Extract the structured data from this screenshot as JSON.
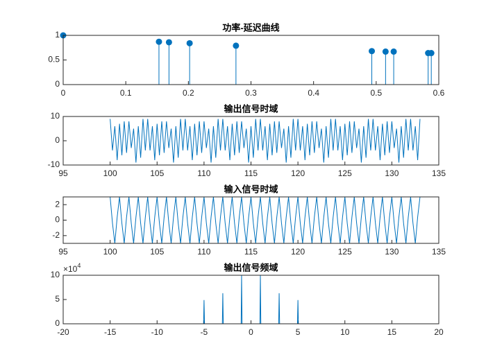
{
  "chart_data": [
    {
      "type": "stem",
      "title": "功率-延迟曲线",
      "color": "#0072bd",
      "x": [
        0,
        0.153,
        0.169,
        0.202,
        0.276,
        0.493,
        0.515,
        0.528,
        0.583,
        0.588
      ],
      "values": [
        1,
        0.87,
        0.86,
        0.84,
        0.79,
        0.68,
        0.67,
        0.67,
        0.64,
        0.64
      ],
      "xlim": [
        0,
        0.6
      ],
      "xticks": [
        0,
        0.1,
        0.2,
        0.3,
        0.4,
        0.5,
        0.6
      ],
      "ylim": [
        0,
        1
      ],
      "yticks": [
        0,
        0.5,
        1
      ]
    },
    {
      "type": "line",
      "title": "输出信号时域",
      "color": "#0072bd",
      "x": [
        100,
        100.25,
        100.5,
        100.75,
        101,
        101.25,
        101.5,
        101.75,
        102,
        102.25,
        102.5,
        102.75,
        103,
        103.25,
        103.5,
        103.75,
        104,
        104.25,
        104.5,
        104.75,
        105,
        105.25,
        105.5,
        105.75,
        106,
        106.25,
        106.5,
        106.75,
        107,
        107.25,
        107.5,
        107.75,
        108,
        108.25,
        108.5,
        108.75,
        109,
        109.25,
        109.5,
        109.75,
        110,
        110.25,
        110.5,
        110.75,
        111,
        111.25,
        111.5,
        111.75,
        112,
        112.25,
        112.5,
        112.75,
        113,
        113.25,
        113.5,
        113.75,
        114,
        114.25,
        114.5,
        114.75,
        115,
        115.25,
        115.5,
        115.75,
        116,
        116.25,
        116.5,
        116.75,
        117,
        117.25,
        117.5,
        117.75,
        118,
        118.25,
        118.5,
        118.75,
        119,
        119.25,
        119.5,
        119.75,
        120,
        120.25,
        120.5,
        120.75,
        121,
        121.25,
        121.5,
        121.75,
        122,
        122.25,
        122.5,
        122.75,
        123,
        123.25,
        123.5,
        123.75,
        124,
        124.25,
        124.5,
        124.75,
        125,
        125.25,
        125.5,
        125.75,
        126,
        126.25,
        126.5,
        126.75,
        127,
        127.25,
        127.5,
        127.75,
        128,
        128.25,
        128.5,
        128.75,
        129,
        129.25,
        129.5,
        129.75,
        130,
        130.25,
        130.5,
        130.75,
        131,
        131.25,
        131.5,
        131.75,
        132,
        132.25,
        132.5,
        132.75,
        133
      ],
      "values": [
        9,
        -4,
        6,
        -8,
        7,
        -6,
        8,
        -5,
        8,
        -3,
        5,
        -9,
        6,
        -7,
        9,
        -4,
        9,
        -4,
        6,
        -8,
        7,
        -6,
        8,
        -5,
        8,
        -3,
        5,
        -9,
        6,
        -7,
        9,
        -4,
        9,
        -4,
        6,
        -8,
        7,
        -6,
        8,
        -5,
        8,
        -3,
        5,
        -9,
        6,
        -7,
        9,
        -4,
        9,
        -4,
        6,
        -8,
        7,
        -6,
        8,
        -5,
        8,
        -3,
        5,
        -9,
        6,
        -7,
        9,
        -4,
        9,
        -4,
        6,
        -8,
        7,
        -6,
        8,
        -5,
        8,
        -3,
        5,
        -9,
        6,
        -7,
        9,
        -4,
        9,
        -4,
        6,
        -8,
        7,
        -6,
        8,
        -5,
        8,
        -3,
        5,
        -9,
        6,
        -7,
        9,
        -4,
        9,
        -4,
        6,
        -8,
        7,
        -6,
        8,
        -5,
        8,
        -3,
        5,
        -9,
        6,
        -7,
        9,
        -4,
        9,
        -4,
        6,
        -8,
        7,
        -6,
        8,
        -5,
        8,
        -3,
        5,
        -9,
        6,
        -7,
        9,
        -4,
        9,
        -4,
        6,
        -8,
        9
      ],
      "xlim": [
        95,
        135
      ],
      "xticks": [
        95,
        100,
        105,
        110,
        115,
        120,
        125,
        130,
        135
      ],
      "ylim": [
        -10,
        10
      ],
      "yticks": [
        -10,
        0,
        10
      ]
    },
    {
      "type": "line",
      "title": "输入信号时域",
      "color": "#0072bd",
      "x": [
        100,
        100.25,
        100.5,
        100.75,
        101,
        101.25,
        101.5,
        101.75,
        102,
        102.25,
        102.5,
        102.75,
        103,
        103.25,
        103.5,
        103.75,
        104,
        104.25,
        104.5,
        104.75,
        105,
        105.25,
        105.5,
        105.75,
        106,
        106.25,
        106.5,
        106.75,
        107,
        107.25,
        107.5,
        107.75,
        108,
        108.25,
        108.5,
        108.75,
        109,
        109.25,
        109.5,
        109.75,
        110,
        110.25,
        110.5,
        110.75,
        111,
        111.25,
        111.5,
        111.75,
        112,
        112.25,
        112.5,
        112.75,
        113,
        113.25,
        113.5,
        113.75,
        114,
        114.25,
        114.5,
        114.75,
        115,
        115.25,
        115.5,
        115.75,
        116,
        116.25,
        116.5,
        116.75,
        117,
        117.25,
        117.5,
        117.75,
        118,
        118.25,
        118.5,
        118.75,
        119,
        119.25,
        119.5,
        119.75,
        120,
        120.25,
        120.5,
        120.75,
        121,
        121.25,
        121.5,
        121.75,
        122,
        122.25,
        122.5,
        122.75,
        123,
        123.25,
        123.5,
        123.75,
        124,
        124.25,
        124.5,
        124.75,
        125,
        125.25,
        125.5,
        125.75,
        126,
        126.25,
        126.5,
        126.75,
        127,
        127.25,
        127.5,
        127.75,
        128,
        128.25,
        128.5,
        128.75,
        129,
        129.25,
        129.5,
        129.75,
        130,
        130.25,
        130.5,
        130.75,
        131,
        131.25,
        131.5,
        131.75,
        132,
        132.25,
        132.5,
        132.75,
        133
      ],
      "values": [
        3,
        -0.4,
        -3,
        0.4,
        3,
        -0.4,
        -3,
        0.4,
        3,
        -0.4,
        -3,
        0.4,
        3,
        -0.4,
        -3,
        0.4,
        3,
        -0.4,
        -3,
        0.4,
        3,
        -0.4,
        -3,
        0.4,
        3,
        -0.4,
        -3,
        0.4,
        3,
        -0.4,
        -3,
        0.4,
        3,
        -0.4,
        -3,
        0.4,
        3,
        -0.4,
        -3,
        0.4,
        3,
        -0.4,
        -3,
        0.4,
        3,
        -0.4,
        -3,
        0.4,
        3,
        -0.4,
        -3,
        0.4,
        3,
        -0.4,
        -3,
        0.4,
        3,
        -0.4,
        -3,
        0.4,
        3,
        -0.4,
        -3,
        0.4,
        3,
        -0.4,
        -3,
        0.4,
        3,
        -0.4,
        -3,
        0.4,
        3,
        -0.4,
        -3,
        0.4,
        3,
        -0.4,
        -3,
        0.4,
        3,
        -0.4,
        -3,
        0.4,
        3,
        -0.4,
        -3,
        0.4,
        3,
        -0.4,
        -3,
        0.4,
        3,
        -0.4,
        -3,
        0.4,
        3,
        -0.4,
        -3,
        0.4,
        3,
        -0.4,
        -3,
        0.4,
        3,
        -0.4,
        -3,
        0.4,
        3,
        -0.4,
        -3,
        0.4,
        3,
        -0.4,
        -3,
        0.4,
        3,
        -0.4,
        -3,
        0.4,
        3,
        -0.4,
        -3,
        0.4,
        3,
        -0.4,
        -3,
        0.4,
        3,
        -0.4,
        -3,
        0.4,
        3
      ],
      "xlim": [
        95,
        135
      ],
      "xticks": [
        95,
        100,
        105,
        110,
        115,
        120,
        125,
        130,
        135
      ],
      "ylim": [
        -3,
        3
      ],
      "yticks": [
        -2,
        0,
        2
      ]
    },
    {
      "type": "line",
      "title": "输出信号频域",
      "color": "#0072bd",
      "y_multiplier": "×10",
      "y_multiplier_exp": "4",
      "x": [
        -20,
        -5.05,
        -5,
        -4.95,
        -3.05,
        -3,
        -2.95,
        -1.05,
        -1,
        -0.95,
        0.95,
        1,
        1.05,
        2.95,
        3,
        3.05,
        4.95,
        5,
        5.05,
        20
      ],
      "values": [
        0,
        0,
        49000,
        0,
        0,
        63000,
        0,
        0,
        100000,
        0,
        0,
        100000,
        0,
        0,
        63000,
        0,
        0,
        49000,
        0,
        0
      ],
      "xlim": [
        -20,
        20
      ],
      "xticks": [
        -20,
        -15,
        -10,
        -5,
        0,
        5,
        10,
        15,
        20
      ],
      "ylim": [
        0,
        100000
      ],
      "yticks": [
        0,
        {
          "value": 50000,
          "label": "5"
        },
        {
          "value": 100000,
          "label": "10"
        }
      ]
    }
  ]
}
